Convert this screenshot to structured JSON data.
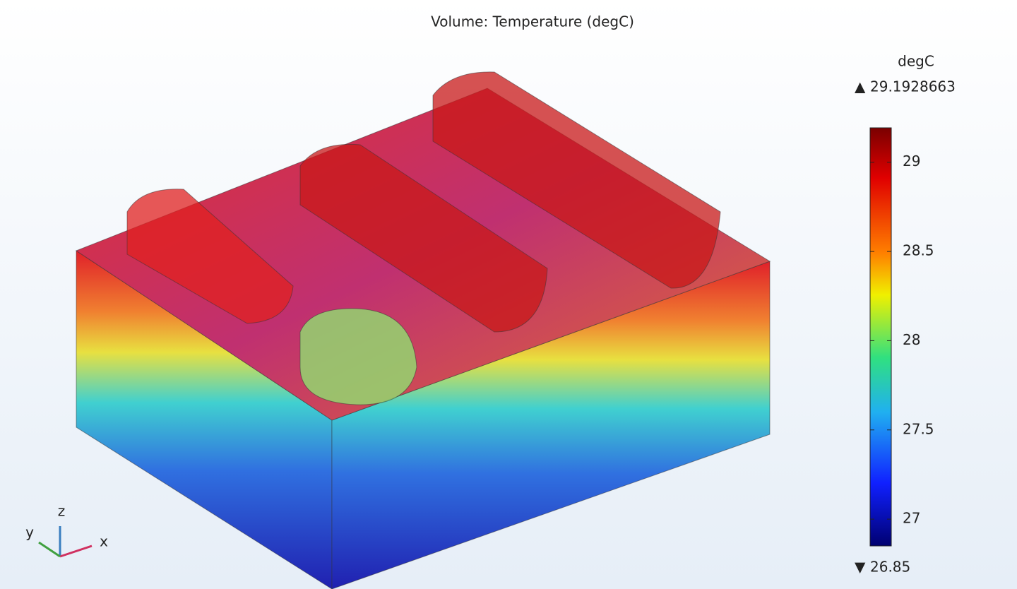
{
  "title": "Volume: Temperature (degC)",
  "colorbar": {
    "unit": "degC",
    "max": 29.1928663,
    "min": 26.85,
    "ticks": [
      29,
      28.5,
      28,
      27.5,
      27
    ]
  },
  "axes_triad": {
    "x": "x",
    "y": "y",
    "z": "z"
  }
}
